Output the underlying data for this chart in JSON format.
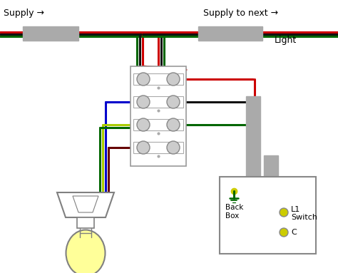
{
  "bg_color": "#ffffff",
  "supply_label": "Supply →",
  "supply_next_label": "Supply to next →",
  "light_label": "Light",
  "back_box_label": "Back\nBox",
  "l1_label": "L1",
  "switch_label": "Switch",
  "c_label": "C",
  "colors": {
    "red": "#cc0000",
    "black": "#111111",
    "green": "#006600",
    "blue": "#0000cc",
    "yellow_green": "#aacc00",
    "dark_red": "#660000",
    "gray": "#aaaaaa",
    "gray_dark": "#888888",
    "white": "#ffffff",
    "yellow": "#ffff99",
    "lt_gray": "#cccccc",
    "gold": "#cccc00"
  }
}
